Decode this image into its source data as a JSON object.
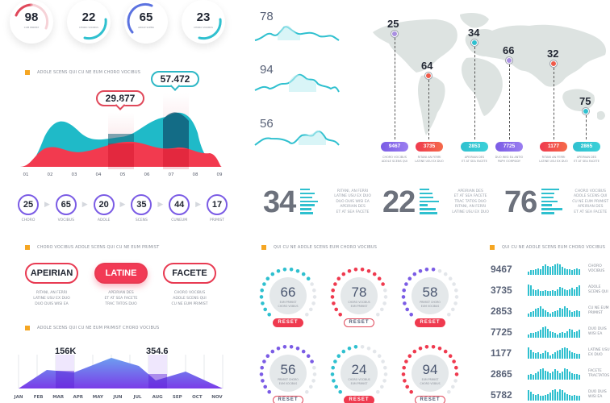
{
  "kpis": [
    {
      "value": "98",
      "label": "CUM PRIMIST",
      "color": "#e0485a",
      "pct": 0.55
    },
    {
      "value": "22",
      "label": "CHORO VOCIBUS",
      "color": "#2fc0cf",
      "pct": 0.45
    },
    {
      "value": "65",
      "label": "ADOLE SCENS",
      "color": "#5b72e0",
      "pct": 0.4
    },
    {
      "value": "23",
      "label": "CHORO VOCIBUS",
      "color": "#2fc0cf",
      "pct": 0.45
    }
  ],
  "area_chart": {
    "title": "ADOLE SCENS QUI CU NE EUM CHORO VOCIBUS",
    "callouts": [
      {
        "value": "29.877",
        "color": "#e0485a"
      },
      {
        "value": "57.472",
        "color": "#2fb8c6"
      }
    ]
  },
  "steps": [
    {
      "value": "25",
      "label": "CHORO"
    },
    {
      "value": "65",
      "label": "VOCIBUS"
    },
    {
      "value": "20",
      "label": "ADOLE"
    },
    {
      "value": "35",
      "label": "SCENS"
    },
    {
      "value": "44",
      "label": "CUNEUM"
    },
    {
      "value": "17",
      "label": "PRIMIST"
    }
  ],
  "options": {
    "title": "CHORO VOCIBUS ADOLE SCENS QUI CU NE EUM PRIMIST",
    "items": [
      {
        "label": "APEIRIAN",
        "desc": [
          "RITANI, AN FERRI",
          "LATINE USU EX DUO",
          "DUO DUIS WISI EA"
        ],
        "active": false
      },
      {
        "label": "LATINE",
        "desc": [
          "APEIRIAN DES",
          "ET AT SEA FACETE",
          "TRAC TATOS DUO"
        ],
        "active": true
      },
      {
        "label": "FACETE",
        "desc": [
          "CHORO VOCIBUS",
          "ADOLE SCENS QUI",
          "CU NE EUM PRIMIST"
        ],
        "active": false
      }
    ]
  },
  "monthly_chart": {
    "title": "ADOLE SCENS QUI CU NE EUM PRIMIST CHORO VOCIBUS",
    "annotations": [
      {
        "value": "156K",
        "month": "MAR"
      },
      {
        "value": "354.6",
        "month": "AUG"
      }
    ]
  },
  "sparklines": [
    {
      "value": "78"
    },
    {
      "value": "94"
    },
    {
      "value": "56"
    }
  ],
  "map": {
    "markers": [
      {
        "value": "25",
        "badge": "9467",
        "color": "#7b5ce5",
        "desc": [
          "CHORO VOCIBUS",
          "ADOLE SCENS QUI"
        ]
      },
      {
        "value": "64",
        "badge": "3735",
        "color": "#ef3a4f",
        "desc": [
          "RITANI AN FERRI",
          "LATINE USU EX DUO"
        ]
      },
      {
        "value": "34",
        "badge": "2853",
        "color": "#2fc0cf",
        "desc": [
          "APEIRIAN DES",
          "ET AT SEA FACETE"
        ]
      },
      {
        "value": "66",
        "badge": "7725",
        "color": "#7b5ce5",
        "desc": [
          "DUO WISI EA ANTIO",
          "PAPH OORPSIDY"
        ]
      },
      {
        "value": "32",
        "badge": "1177",
        "color": "#ef3a4f",
        "desc": [
          "RITANI AN FERRI",
          "LATINE USU EX DUO"
        ]
      },
      {
        "value": "75",
        "badge": "2865",
        "color": "#2fc0cf",
        "desc": [
          "APEIRIAN DES",
          "ET AT SEA FACETE"
        ]
      }
    ]
  },
  "big_stats": [
    {
      "value": "34",
      "desc": [
        "RITANI, AN FERRI",
        "LATINE USU EX DUO",
        "DUO DUIS WISI EA",
        "APEIRIAN DES",
        "ET AT SEA FACETE"
      ]
    },
    {
      "value": "22",
      "desc": [
        "APEIRIAN DES",
        "ET AT SEA FACETE",
        "TRAC TATOS DUO",
        "RITANI, AN FERRI",
        "LATINE USU EX DUO"
      ]
    },
    {
      "value": "76",
      "desc": [
        "CHORO VOCIBUS",
        "ADOLE SCENS QUI",
        "CU NE EUM PRIMIST",
        "APEIRIAN DES",
        "ET AT SEA FACETE"
      ]
    }
  ],
  "dials": {
    "title": "QUI CU NE ADOLE SCENS EUM CHORO VOCIBUS",
    "reset_label": "RESET",
    "items": [
      {
        "value": "66",
        "label": [
          "EUM PRIMIST",
          "CHORO VOBIUS"
        ],
        "color": "#2fc0cf",
        "filled": 14,
        "reset_filled": true
      },
      {
        "value": "78",
        "label": [
          "CHORO VOCIBUS",
          "EUM PRIMIST"
        ],
        "color": "#ef3a4f",
        "filled": 15,
        "reset_filled": false
      },
      {
        "value": "58",
        "label": [
          "PRIMIST CHORO",
          "EUM VOCIBUS"
        ],
        "color": "#7b5ce5",
        "filled": 11,
        "reset_filled": true
      },
      {
        "value": "56",
        "label": [
          "PRIMIST CHORO",
          "EUM VOCIBUS"
        ],
        "color": "#7b5ce5",
        "filled": 15,
        "reset_filled": false
      },
      {
        "value": "24",
        "label": [
          "CHORO VOCIBUS",
          "EUM PRIMIST"
        ],
        "color": "#2fc0cf",
        "filled": 10,
        "reset_filled": true
      },
      {
        "value": "94",
        "label": [
          "EUM PRIMIST",
          "CHORO VOBIUS"
        ],
        "color": "#ef3a4f",
        "filled": 17,
        "reset_filled": false
      }
    ]
  },
  "bar_list": {
    "title": "QUI CU NE ADOLE SCENS EUM CHORO VOCIBUS",
    "rows": [
      {
        "value": "9467",
        "label": [
          "CHORO",
          "VOCIBUS"
        ]
      },
      {
        "value": "3735",
        "label": [
          "ADOLE",
          "SCENS QUI"
        ]
      },
      {
        "value": "2853",
        "label": [
          "CU NE EUM",
          "PRIMIST"
        ]
      },
      {
        "value": "7725",
        "label": [
          "DUO DUIS",
          "WISI EA"
        ]
      },
      {
        "value": "1177",
        "label": [
          "LATINE USU",
          "EX DUO"
        ]
      },
      {
        "value": "2865",
        "label": [
          "FACETE",
          "TRACTATOS"
        ]
      },
      {
        "value": "5782",
        "label": [
          "DUO DUIS",
          "WISI EA"
        ]
      }
    ]
  },
  "chart_data": [
    {
      "type": "area",
      "title": "ADOLE SCENS QUI CU NE EUM CHORO VOCIBUS",
      "categories": [
        "01",
        "02",
        "03",
        "04",
        "05",
        "06",
        "07",
        "08",
        "09"
      ],
      "series": [
        {
          "name": "teal",
          "values": [
            5,
            58,
            44,
            40,
            42,
            55,
            73,
            40,
            5
          ],
          "color": "#1fbac8"
        },
        {
          "name": "red",
          "values": [
            5,
            24,
            20,
            24,
            30,
            27,
            22,
            15,
            5
          ],
          "color": "#f23a4f"
        }
      ],
      "annotations": [
        {
          "x": "05",
          "label": "29.877"
        },
        {
          "x": "07",
          "label": "57.472"
        }
      ],
      "grid": false
    },
    {
      "type": "area",
      "title": "ADOLE SCENS QUI CU NE EUM PRIMIST CHORO VOCIBUS",
      "categories": [
        "JAN",
        "FEB",
        "MAR",
        "APR",
        "MAY",
        "JUN",
        "JUL",
        "AUG",
        "SEP",
        "OCT",
        "NOV"
      ],
      "values": [
        0,
        50,
        47,
        44,
        70,
        84,
        60,
        25,
        42,
        20,
        0
      ],
      "annotations": [
        {
          "x": "MAR",
          "label": "156K"
        },
        {
          "x": "AUG",
          "label": "354.6"
        }
      ],
      "grid": true
    },
    {
      "type": "line",
      "title": "sparklines",
      "series": [
        {
          "name": "78",
          "values": [
            2,
            5,
            3,
            9,
            4,
            5,
            3,
            4,
            2
          ]
        },
        {
          "name": "94",
          "values": [
            2,
            4,
            3,
            10,
            7,
            5,
            4,
            3,
            2
          ]
        },
        {
          "name": "56",
          "values": [
            4,
            5,
            2,
            6,
            5,
            7,
            3,
            2,
            1
          ]
        }
      ]
    },
    {
      "type": "bar",
      "title": "QUI CU NE ADOLE SCENS EUM CHORO VOCIBUS",
      "categories": [
        "9467",
        "3735",
        "2853",
        "7725",
        "1177",
        "2865",
        "5782"
      ],
      "values": [
        9467,
        3735,
        2853,
        7725,
        1177,
        2865,
        5782
      ]
    }
  ]
}
